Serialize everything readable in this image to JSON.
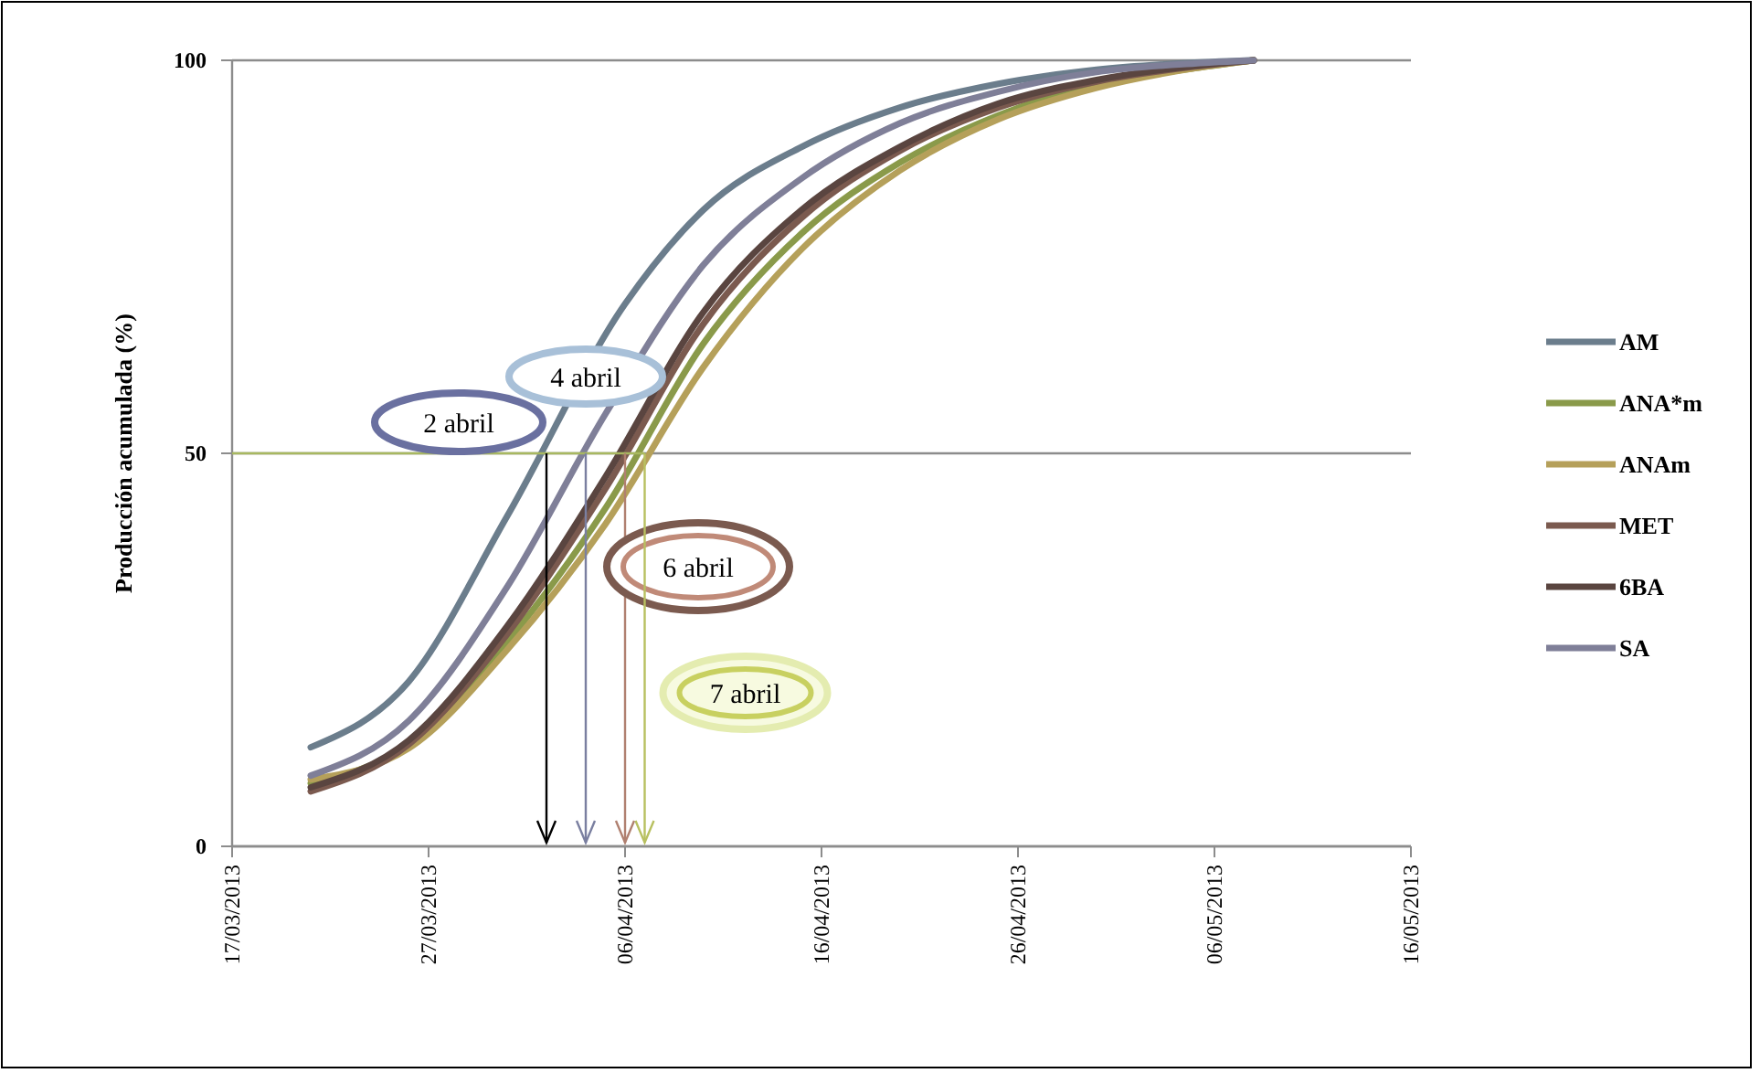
{
  "chart_data": {
    "type": "line",
    "ylabel": "Producción acumulada (%)",
    "x": [
      "2013-03-21",
      "2013-03-26",
      "2013-03-31",
      "2013-04-05",
      "2013-04-10",
      "2013-04-15",
      "2013-04-20",
      "2013-04-25",
      "2013-04-30",
      "2013-05-05",
      "2013-05-08"
    ],
    "series": [
      {
        "name": "AM",
        "color": "#6b7d8c",
        "x": [
          "2013-03-21",
          "2013-03-26",
          "2013-03-31",
          "2013-04-06",
          "2013-04-10",
          "2013-04-15",
          "2013-04-20",
          "2013-04-25",
          "2013-04-30",
          "2013-05-05",
          "2013-05-08"
        ],
        "values": [
          12.6,
          21,
          42,
          69,
          81,
          89,
          94,
          97,
          98.8,
          99.7,
          100
        ]
      },
      {
        "name": "ANA*m",
        "color": "#8a9a4a",
        "values": [
          8,
          13,
          26,
          43,
          64,
          78,
          87,
          93,
          97,
          99,
          100
        ]
      },
      {
        "name": "ANAm",
        "color": "#b5a05a",
        "values": [
          8.5,
          12.5,
          25,
          41,
          61,
          76,
          86,
          92.5,
          96.5,
          99,
          100
        ]
      },
      {
        "name": "MET",
        "color": "#7b5a4f",
        "values": [
          7,
          13,
          27,
          45.5,
          66.5,
          80,
          88.5,
          94,
          97.3,
          99.2,
          100
        ]
      },
      {
        "name": "6BA",
        "color": "#5a4540",
        "values": [
          7.5,
          13.5,
          28,
          47,
          68,
          81,
          89,
          94.5,
          97.5,
          99.3,
          100
        ]
      },
      {
        "name": "SA",
        "color": "#7f7f98",
        "values": [
          9,
          16,
          33,
          55,
          74,
          85,
          92,
          96,
          98.5,
          99.6,
          100
        ]
      }
    ],
    "xlim": [
      "2013-03-17",
      "2013-05-16"
    ],
    "xticks": [
      {
        "value": "2013-03-17",
        "label": "17/03/2013"
      },
      {
        "value": "2013-03-27",
        "label": "27/03/2013"
      },
      {
        "value": "2013-04-06",
        "label": "06/04/2013"
      },
      {
        "value": "2013-04-16",
        "label": "16/04/2013"
      },
      {
        "value": "2013-04-26",
        "label": "26/04/2013"
      },
      {
        "value": "2013-05-06",
        "label": "06/05/2013"
      },
      {
        "value": "2013-05-16",
        "label": "16/05/2013"
      }
    ],
    "ylim": [
      0,
      100
    ],
    "yticks": [
      0,
      50,
      100
    ],
    "grid": "y",
    "legend": "right",
    "marker": "none",
    "line_style": "solid",
    "ref_lines": [
      {
        "axis": "y",
        "value": 50,
        "color": "#a8b860"
      },
      {
        "axis": "x",
        "value": "2013-04-02",
        "label": "2 abril",
        "color": "#000000"
      },
      {
        "axis": "x",
        "value": "2013-04-04",
        "label": "4 abril",
        "color": "#7a7fa0"
      },
      {
        "axis": "x",
        "value": "2013-04-06",
        "label": "6 abril",
        "color": "#b08070"
      },
      {
        "axis": "x",
        "value": "2013-04-07",
        "label": "7 abril",
        "color": "#b8c060"
      }
    ]
  }
}
